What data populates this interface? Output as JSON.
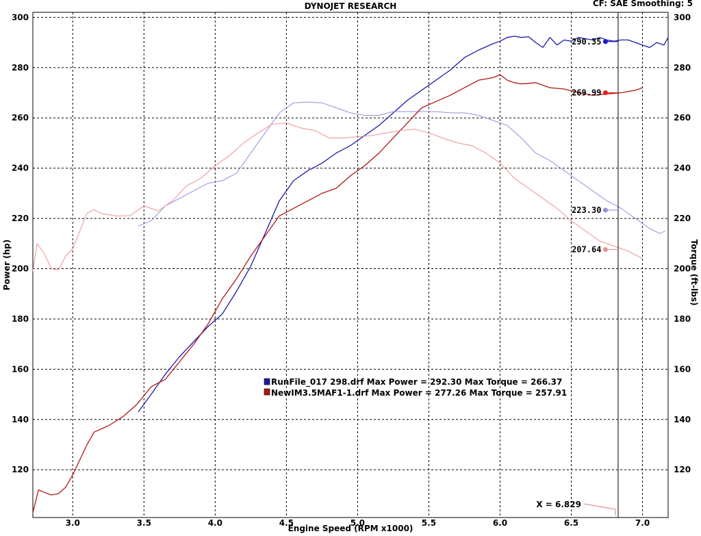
{
  "chart_data": {
    "type": "line",
    "title": "DYNOJET RESEARCH",
    "corner_note": "CF: SAE  Smoothing: 5",
    "xlabel": "Engine Speed (RPM x1000)",
    "ylabel": "Power (hp)",
    "y2label": "Torque (ft-lbs)",
    "xlim": [
      2.72,
      7.18
    ],
    "ylim": [
      101,
      302
    ],
    "x_ticks": [
      "3.0",
      "3.5",
      "4.0",
      "4.5",
      "5.0",
      "5.5",
      "6.0",
      "6.5",
      "7.0"
    ],
    "x_tick_values": [
      3.0,
      3.5,
      4.0,
      4.5,
      5.0,
      5.5,
      6.0,
      6.5,
      7.0
    ],
    "y_ticks": [
      "120",
      "140",
      "160",
      "180",
      "200",
      "220",
      "240",
      "260",
      "280",
      "300"
    ],
    "y_tick_values": [
      120,
      140,
      160,
      180,
      200,
      220,
      240,
      260,
      280,
      300
    ],
    "grid": true,
    "cursor": {
      "x": 6.829,
      "label": "X = 6.829"
    },
    "legend_position": "center-bottom",
    "legend": [
      {
        "text": "RunFile_017 298.drf Max Power = 292.30     Max Torque = 266.37",
        "color": "#1a1aa6"
      },
      {
        "text": "NewIM3.5MAF1-1.drf Max Power = 277.26      Max Torque = 257.91",
        "color": "#b01515"
      }
    ],
    "series": [
      {
        "name": "RunFile_017 298.drf Power",
        "color": "#1a1aa6",
        "width": 1.3,
        "x": [
          3.46,
          3.55,
          3.65,
          3.75,
          3.85,
          3.95,
          4.05,
          4.15,
          4.25,
          4.35,
          4.45,
          4.55,
          4.65,
          4.75,
          4.85,
          4.95,
          5.05,
          5.15,
          5.25,
          5.35,
          5.45,
          5.55,
          5.65,
          5.75,
          5.85,
          5.95,
          6.0,
          6.05,
          6.1,
          6.15,
          6.2,
          6.25,
          6.3,
          6.35,
          6.4,
          6.45,
          6.5,
          6.55,
          6.6,
          6.65,
          6.7,
          6.75,
          6.8,
          6.85,
          6.9,
          6.95,
          7.0,
          7.05,
          7.1,
          7.15,
          7.18
        ],
        "y": [
          143,
          150,
          158,
          165,
          171,
          177,
          182,
          191,
          201,
          214,
          227,
          235,
          239,
          242,
          246,
          249,
          253,
          257,
          262,
          267,
          271,
          275,
          279,
          284,
          287,
          289.5,
          290.5,
          292,
          292.5,
          292,
          292.3,
          290,
          288,
          292,
          289,
          291,
          290.5,
          292,
          291.5,
          291,
          292,
          291,
          290.5,
          291,
          291,
          290,
          289,
          288,
          290,
          289,
          292
        ]
      },
      {
        "name": "RunFile_017 298.drf Torque",
        "color": "#8f8fe0",
        "width": 1,
        "x": [
          3.46,
          3.55,
          3.65,
          3.75,
          3.85,
          3.95,
          4.05,
          4.15,
          4.25,
          4.35,
          4.45,
          4.55,
          4.65,
          4.75,
          4.85,
          4.95,
          5.05,
          5.15,
          5.25,
          5.35,
          5.45,
          5.55,
          5.65,
          5.75,
          5.85,
          5.95,
          6.05,
          6.15,
          6.25,
          6.35,
          6.45,
          6.55,
          6.65,
          6.75,
          6.85,
          6.95,
          7.05,
          7.12,
          7.16
        ],
        "y": [
          217,
          219,
          225,
          228,
          231,
          234,
          235,
          238,
          246,
          254,
          262,
          266,
          266.3,
          266,
          264,
          262,
          261,
          261,
          262.5,
          262.5,
          262.5,
          262.5,
          262,
          262,
          261,
          259,
          257,
          252,
          246,
          243,
          239,
          235,
          231,
          227,
          224,
          220,
          216,
          214,
          215
        ]
      },
      {
        "name": "NewIM3.5MAF1-1.drf Power",
        "color": "#b01515",
        "width": 1.3,
        "x": [
          2.72,
          2.76,
          2.8,
          2.85,
          2.9,
          2.95,
          3.0,
          3.05,
          3.1,
          3.15,
          3.25,
          3.35,
          3.45,
          3.55,
          3.65,
          3.75,
          3.85,
          3.95,
          4.05,
          4.15,
          4.25,
          4.35,
          4.45,
          4.55,
          4.65,
          4.75,
          4.85,
          4.95,
          5.05,
          5.15,
          5.25,
          5.35,
          5.45,
          5.55,
          5.65,
          5.75,
          5.85,
          5.95,
          6.0,
          6.05,
          6.1,
          6.15,
          6.25,
          6.35,
          6.45,
          6.55,
          6.65,
          6.75,
          6.85,
          6.95,
          7.0
        ],
        "y": [
          103,
          112,
          111,
          110,
          110.5,
          113,
          118,
          124,
          130,
          135,
          137.5,
          141,
          146,
          153,
          156,
          163,
          170,
          178,
          188,
          196,
          205,
          213,
          221,
          224,
          227,
          230,
          232,
          237,
          241,
          246,
          252,
          258,
          264,
          266.5,
          269,
          272,
          275,
          276,
          277.2,
          275,
          274,
          273.5,
          274,
          272,
          271.5,
          270,
          269,
          269.5,
          270,
          271,
          272
        ]
      },
      {
        "name": "NewIM3.5MAF1-1.drf Torque",
        "color": "#ee8f8f",
        "width": 1,
        "x": [
          2.72,
          2.75,
          2.8,
          2.85,
          2.9,
          2.95,
          3.0,
          3.05,
          3.1,
          3.15,
          3.2,
          3.3,
          3.4,
          3.5,
          3.6,
          3.7,
          3.8,
          3.9,
          4.0,
          4.1,
          4.2,
          4.3,
          4.4,
          4.5,
          4.6,
          4.7,
          4.8,
          4.9,
          5.0,
          5.1,
          5.2,
          5.3,
          5.4,
          5.5,
          5.6,
          5.7,
          5.8,
          5.9,
          6.0,
          6.1,
          6.2,
          6.3,
          6.4,
          6.5,
          6.6,
          6.7,
          6.8,
          6.9,
          7.0
        ],
        "y": [
          199,
          210,
          206,
          200,
          199.5,
          205,
          208,
          215,
          222,
          223.5,
          222,
          221,
          221,
          225,
          223,
          227,
          233,
          236,
          241,
          245,
          250,
          254,
          257.5,
          258,
          256,
          255,
          252,
          252,
          252.5,
          253,
          254,
          255,
          255.5,
          254,
          252,
          250,
          249,
          246,
          242,
          236,
          232,
          228,
          224,
          219,
          215,
          211,
          209,
          207,
          204
        ]
      }
    ],
    "markers": [
      {
        "label": "290.35",
        "x": 6.74,
        "y": 290.35,
        "color": "#1a1ad0"
      },
      {
        "label": "269.99",
        "x": 6.74,
        "y": 269.99,
        "color": "#e02020"
      },
      {
        "label": "223.30",
        "x": 6.74,
        "y": 223.3,
        "color": "#8f8fe0"
      },
      {
        "label": "207.64",
        "x": 6.74,
        "y": 207.64,
        "color": "#ee8f8f"
      }
    ]
  }
}
